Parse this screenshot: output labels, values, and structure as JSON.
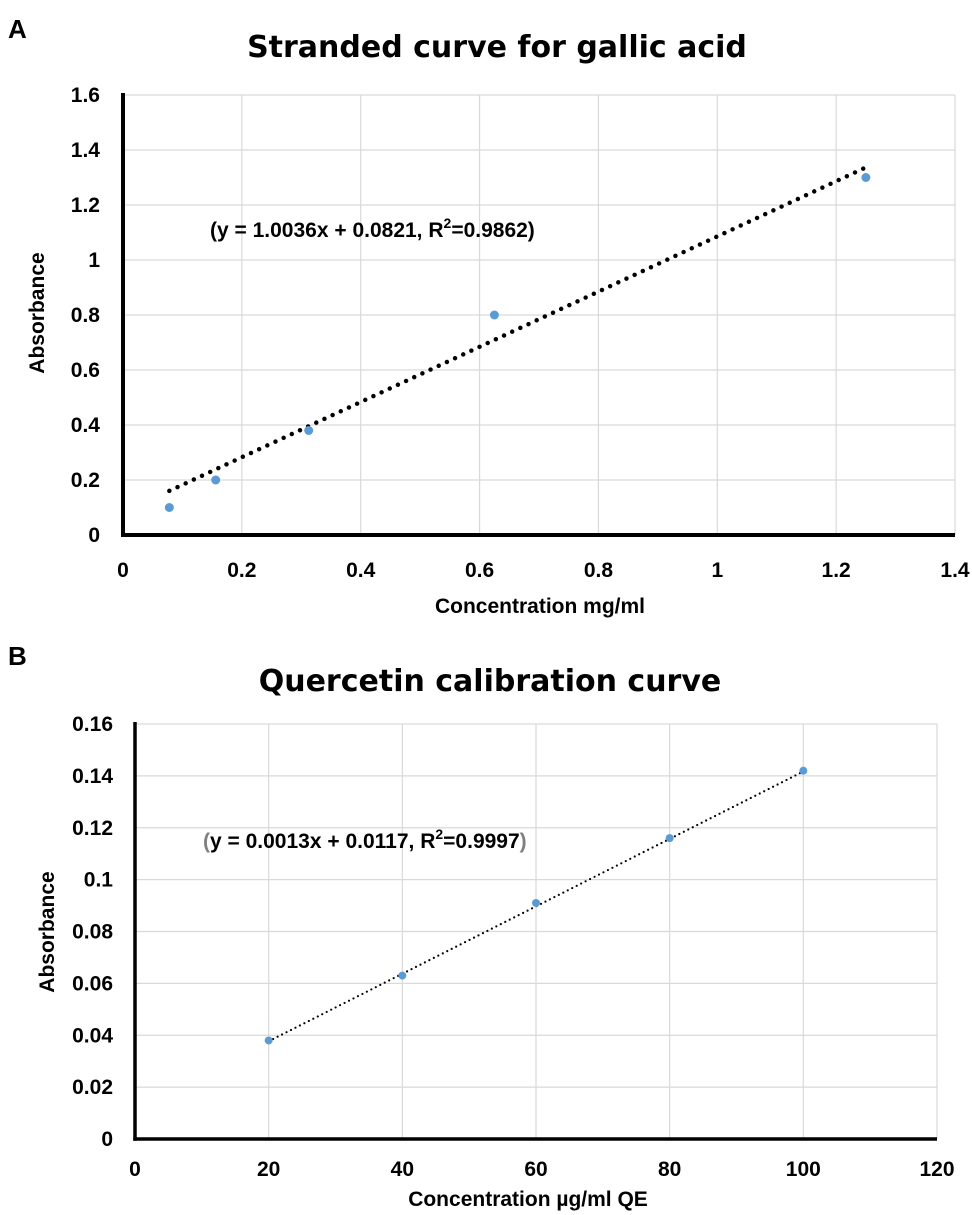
{
  "chart_data": [
    {
      "panel_label": "A",
      "type": "scatter",
      "title": "Stranded curve for gallic acid",
      "xlabel": "Concentration  mg/ml",
      "ylabel": "Absorbance",
      "xlim": [
        0,
        1.4
      ],
      "ylim": [
        0,
        1.6
      ],
      "x_ticks": [
        "0",
        "0.2",
        "0.4",
        "0.6",
        "0.8",
        "1",
        "1.2",
        "1.4"
      ],
      "y_ticks": [
        "0",
        "0.2",
        "0.4",
        "0.6",
        "0.8",
        "1",
        "1.2",
        "1.4",
        "1.6"
      ],
      "grid": true,
      "series": [
        {
          "x": [
            0.078,
            0.156,
            0.3125,
            0.625,
            1.25
          ],
          "y": [
            0.1,
            0.2,
            0.38,
            0.8,
            1.3
          ]
        }
      ],
      "trendline": {
        "slope": 1.0036,
        "intercept": 0.0821,
        "x_range": [
          0.078,
          1.25
        ],
        "style": "dotted-thick"
      },
      "equation": {
        "open": "(y = 1.0036x + 0.0821, R",
        "sup": "2",
        "close": "=0.9862)"
      },
      "colors": {
        "marker": "#5b9bd5",
        "trendline": "#000000",
        "grid": "#d9d9d9",
        "ylabel": "#7f7f7f"
      }
    },
    {
      "panel_label": "B",
      "type": "scatter",
      "title": "Quercetin calibration curve",
      "xlabel": "Concentration  µg/ml QE",
      "ylabel": "Absorbance",
      "xlim": [
        0,
        120
      ],
      "ylim": [
        0,
        0.16
      ],
      "x_ticks": [
        "0",
        "20",
        "40",
        "60",
        "80",
        "100",
        "120"
      ],
      "y_ticks": [
        "0",
        "0.02",
        "0.04",
        "0.06",
        "0.08",
        "0.1",
        "0.12",
        "0.14",
        "0.16"
      ],
      "grid": true,
      "series": [
        {
          "x": [
            20,
            40,
            60,
            80,
            100
          ],
          "y": [
            0.038,
            0.063,
            0.091,
            0.116,
            0.142
          ]
        }
      ],
      "trendline": {
        "slope": 0.0013,
        "intercept": 0.0117,
        "x_range": [
          20,
          100
        ],
        "style": "dotted-thin"
      },
      "equation": {
        "open": "(",
        "body": "y = 0.0013x + 0.0117, R",
        "sup": "2",
        "close": "=0.9997",
        "end": ")"
      },
      "colors": {
        "marker": "#5b9bd5",
        "trendline": "#000000",
        "grid": "#d9d9d9",
        "ylabel": "#000000",
        "paren": "#7f7f7f"
      }
    }
  ]
}
